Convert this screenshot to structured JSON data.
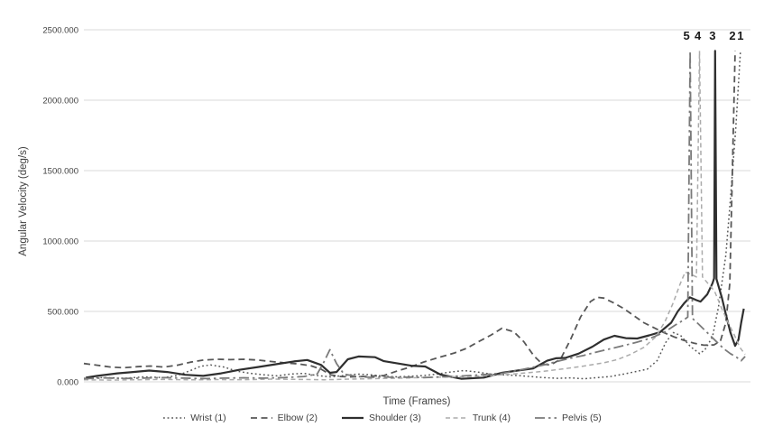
{
  "chart_data": {
    "type": "line",
    "title": "",
    "xlabel": "Time (Frames)",
    "ylabel": "Angular Velocity (deg/s)",
    "x_axis": {
      "label": "Time (Frames)",
      "min": 0,
      "max": 100,
      "note": "x expressed as percent of visible frame range; no numeric tick labels shown",
      "tick_labels": []
    },
    "y_axis": {
      "label": "Angular Velocity (deg/s)",
      "min": 0,
      "max": 2500,
      "tick_interval": 500,
      "tick_labels": [
        "0.000",
        "500.000",
        "1000.000",
        "1500.000",
        "2000.000",
        "2500.000"
      ]
    },
    "grid": "horizontal",
    "grid_color": "#d9d9d9",
    "background_color": "#ffffff",
    "legend_position": "bottom",
    "peak_labels": [
      {
        "text": "5",
        "x": 90.4,
        "y": 2430
      },
      {
        "text": "4",
        "x": 92.1,
        "y": 2430
      },
      {
        "text": "3",
        "x": 94.3,
        "y": 2430
      },
      {
        "text": "2",
        "x": 97.3,
        "y": 2430
      },
      {
        "text": "1",
        "x": 98.5,
        "y": 2430
      }
    ],
    "series": [
      {
        "name": "Wrist (1)",
        "key": "wrist",
        "line_style": "dotted",
        "color": "#575757",
        "width": 1.5,
        "dash": "1.8 2.8",
        "points": [
          [
            0,
            25
          ],
          [
            3,
            30
          ],
          [
            6,
            25
          ],
          [
            9,
            35
          ],
          [
            12,
            30
          ],
          [
            14,
            45
          ],
          [
            16,
            80
          ],
          [
            17.5,
            110
          ],
          [
            19,
            120
          ],
          [
            21,
            105
          ],
          [
            23,
            75
          ],
          [
            25,
            60
          ],
          [
            27,
            50
          ],
          [
            29,
            42
          ],
          [
            31,
            55
          ],
          [
            33,
            60
          ],
          [
            35,
            45
          ],
          [
            37,
            35
          ],
          [
            39,
            45
          ],
          [
            41,
            55
          ],
          [
            43,
            50
          ],
          [
            45,
            40
          ],
          [
            47,
            35
          ],
          [
            49,
            40
          ],
          [
            51,
            45
          ],
          [
            53,
            55
          ],
          [
            55,
            70
          ],
          [
            57,
            80
          ],
          [
            59,
            70
          ],
          [
            61,
            55
          ],
          [
            63,
            50
          ],
          [
            65,
            45
          ],
          [
            67,
            38
          ],
          [
            69,
            30
          ],
          [
            71,
            25
          ],
          [
            73,
            28
          ],
          [
            75,
            22
          ],
          [
            77,
            30
          ],
          [
            79,
            38
          ],
          [
            81,
            55
          ],
          [
            83,
            75
          ],
          [
            84.5,
            90
          ],
          [
            86,
            150
          ],
          [
            87.3,
            280
          ],
          [
            88.4,
            350
          ],
          [
            89.5,
            330
          ],
          [
            91,
            250
          ],
          [
            92.4,
            200
          ],
          [
            93.2,
            230
          ],
          [
            94.3,
            320
          ],
          [
            95.2,
            530
          ],
          [
            96.3,
            900
          ],
          [
            97,
            1300
          ],
          [
            97.8,
            1800
          ],
          [
            98.5,
            2350
          ]
        ]
      },
      {
        "name": "Elbow (2)",
        "key": "elbow",
        "line_style": "dashed",
        "color": "#575757",
        "width": 1.8,
        "dash": "7 4.5",
        "points": [
          [
            0,
            130
          ],
          [
            2,
            118
          ],
          [
            4,
            105
          ],
          [
            6,
            100
          ],
          [
            8,
            108
          ],
          [
            10,
            112
          ],
          [
            12,
            105
          ],
          [
            14,
            118
          ],
          [
            16,
            140
          ],
          [
            18,
            155
          ],
          [
            20,
            160
          ],
          [
            22,
            158
          ],
          [
            24,
            160
          ],
          [
            26,
            155
          ],
          [
            28,
            145
          ],
          [
            30,
            135
          ],
          [
            32,
            128
          ],
          [
            34,
            115
          ],
          [
            35.6,
            90
          ],
          [
            37,
            50
          ],
          [
            38.5,
            38
          ],
          [
            40,
            35
          ],
          [
            42,
            38
          ],
          [
            44,
            42
          ],
          [
            45,
            45
          ],
          [
            47,
            77
          ],
          [
            49,
            105
          ],
          [
            51,
            141
          ],
          [
            53,
            170
          ],
          [
            55.6,
            205
          ],
          [
            57.5,
            240
          ],
          [
            59,
            280
          ],
          [
            61,
            330
          ],
          [
            62.7,
            380
          ],
          [
            64.5,
            355
          ],
          [
            66,
            285
          ],
          [
            67.5,
            185
          ],
          [
            68.8,
            125
          ],
          [
            70,
            120
          ],
          [
            71.5,
            160
          ],
          [
            73,
            300
          ],
          [
            74.5,
            460
          ],
          [
            76,
            570
          ],
          [
            77,
            600
          ],
          [
            78,
            595
          ],
          [
            79.5,
            560
          ],
          [
            81,
            520
          ],
          [
            82.5,
            470
          ],
          [
            84,
            420
          ],
          [
            85.5,
            385
          ],
          [
            87,
            350
          ],
          [
            88.5,
            320
          ],
          [
            90,
            295
          ],
          [
            91.5,
            275
          ],
          [
            93,
            260
          ],
          [
            94.5,
            262
          ],
          [
            95.5,
            290
          ],
          [
            96.3,
            420
          ],
          [
            96.9,
            700
          ],
          [
            97.7,
            2350
          ]
        ]
      },
      {
        "name": "Shoulder (3)",
        "key": "shoulder",
        "line_style": "solid",
        "color": "#2f2f2f",
        "width": 2.2,
        "dash": "",
        "points": [
          [
            0.3,
            30
          ],
          [
            2,
            42
          ],
          [
            5,
            60
          ],
          [
            7,
            68
          ],
          [
            9.8,
            80
          ],
          [
            12.5,
            70
          ],
          [
            15.2,
            50
          ],
          [
            17.9,
            42
          ],
          [
            20.6,
            60
          ],
          [
            23.3,
            85
          ],
          [
            26.1,
            105
          ],
          [
            28.8,
            125
          ],
          [
            31.5,
            145
          ],
          [
            33.5,
            155
          ],
          [
            35.6,
            120
          ],
          [
            36.9,
            64
          ],
          [
            37.9,
            70
          ],
          [
            39.6,
            160
          ],
          [
            41.2,
            180
          ],
          [
            43.7,
            175
          ],
          [
            45,
            147
          ],
          [
            49.1,
            115
          ],
          [
            51.2,
            109
          ],
          [
            53.5,
            51
          ],
          [
            56.6,
            22
          ],
          [
            60,
            30
          ],
          [
            62.7,
            64
          ],
          [
            65.4,
            83
          ],
          [
            67.4,
            95
          ],
          [
            69.5,
            150
          ],
          [
            70.8,
            167
          ],
          [
            72.2,
            170
          ],
          [
            74.2,
            200
          ],
          [
            76.3,
            250
          ],
          [
            78,
            300
          ],
          [
            79.6,
            327
          ],
          [
            81.3,
            310
          ],
          [
            83,
            308
          ],
          [
            84.8,
            330
          ],
          [
            86.4,
            352
          ],
          [
            88.1,
            420
          ],
          [
            89.1,
            500
          ],
          [
            90.1,
            560
          ],
          [
            90.9,
            600
          ],
          [
            91.9,
            580
          ],
          [
            92.5,
            570
          ],
          [
            93.5,
            620
          ],
          [
            94.3,
            700
          ],
          [
            94.55,
            735
          ],
          [
            94.7,
            2350
          ],
          [
            94.9,
            730
          ],
          [
            95.7,
            600
          ],
          [
            96.3,
            480
          ],
          [
            97,
            350
          ],
          [
            97.7,
            256
          ],
          [
            98.2,
            300
          ],
          [
            98.6,
            420
          ],
          [
            99,
            520
          ]
        ]
      },
      {
        "name": "Trunk (4)",
        "key": "trunk",
        "line_style": "dashed",
        "color": "#ababab",
        "width": 1.5,
        "dash": "5 3.5",
        "points": [
          [
            0,
            15
          ],
          [
            4,
            12
          ],
          [
            8,
            15
          ],
          [
            12,
            17
          ],
          [
            16,
            14
          ],
          [
            20,
            16
          ],
          [
            24,
            15
          ],
          [
            28,
            19
          ],
          [
            32,
            17
          ],
          [
            36,
            15
          ],
          [
            40,
            19
          ],
          [
            44,
            23
          ],
          [
            48,
            27
          ],
          [
            52,
            32
          ],
          [
            56,
            36
          ],
          [
            60,
            42
          ],
          [
            63,
            50
          ],
          [
            66,
            62
          ],
          [
            69,
            75
          ],
          [
            72,
            92
          ],
          [
            75,
            112
          ],
          [
            78,
            135
          ],
          [
            80,
            158
          ],
          [
            82,
            195
          ],
          [
            84,
            245
          ],
          [
            85.8,
            320
          ],
          [
            87.2,
            430
          ],
          [
            88.4,
            560
          ],
          [
            89.4,
            690
          ],
          [
            90.2,
            780
          ],
          [
            91,
            765
          ],
          [
            91.9,
            745
          ],
          [
            92.35,
            2350
          ],
          [
            92.8,
            745
          ],
          [
            93.6,
            700
          ],
          [
            94.6,
            645
          ],
          [
            95.6,
            530
          ],
          [
            96.6,
            425
          ],
          [
            97.6,
            330
          ],
          [
            98.4,
            245
          ],
          [
            99.2,
            195
          ]
        ]
      },
      {
        "name": "Pelvis (5)",
        "key": "pelvis",
        "line_style": "dash-dot",
        "color": "#7a7a7a",
        "width": 1.8,
        "dash": "11 4 2.5 4",
        "points": [
          [
            0,
            22
          ],
          [
            3,
            28
          ],
          [
            6,
            24
          ],
          [
            9,
            27
          ],
          [
            12,
            30
          ],
          [
            15,
            26
          ],
          [
            18,
            23
          ],
          [
            21,
            26
          ],
          [
            24,
            29
          ],
          [
            27,
            26
          ],
          [
            30,
            30
          ],
          [
            33,
            38
          ],
          [
            35,
            55
          ],
          [
            36,
            140
          ],
          [
            36.9,
            228
          ],
          [
            37.9,
            130
          ],
          [
            39,
            55
          ],
          [
            41,
            38
          ],
          [
            43,
            32
          ],
          [
            45,
            35
          ],
          [
            47,
            30
          ],
          [
            49,
            34
          ],
          [
            51,
            30
          ],
          [
            53,
            34
          ],
          [
            55,
            38
          ],
          [
            57,
            42
          ],
          [
            59,
            48
          ],
          [
            61,
            55
          ],
          [
            63,
            62
          ],
          [
            65,
            80
          ],
          [
            67,
            100
          ],
          [
            69,
            120
          ],
          [
            71,
            145
          ],
          [
            73,
            168
          ],
          [
            75,
            188
          ],
          [
            77,
            212
          ],
          [
            79,
            235
          ],
          [
            81,
            258
          ],
          [
            83,
            282
          ],
          [
            85,
            310
          ],
          [
            87,
            350
          ],
          [
            88.6,
            400
          ],
          [
            90,
            440
          ],
          [
            90.6,
            460
          ],
          [
            90.95,
            2350
          ],
          [
            91.3,
            450
          ],
          [
            92.2,
            410
          ],
          [
            93.5,
            350
          ],
          [
            94.8,
            290
          ],
          [
            96,
            235
          ],
          [
            97,
            200
          ],
          [
            97.9,
            175
          ],
          [
            98.6,
            150
          ],
          [
            99.2,
            180
          ]
        ]
      }
    ]
  },
  "text_colors": {
    "axis_text": "#3f3f3f",
    "peak_label_text": "#1a1a1a"
  }
}
